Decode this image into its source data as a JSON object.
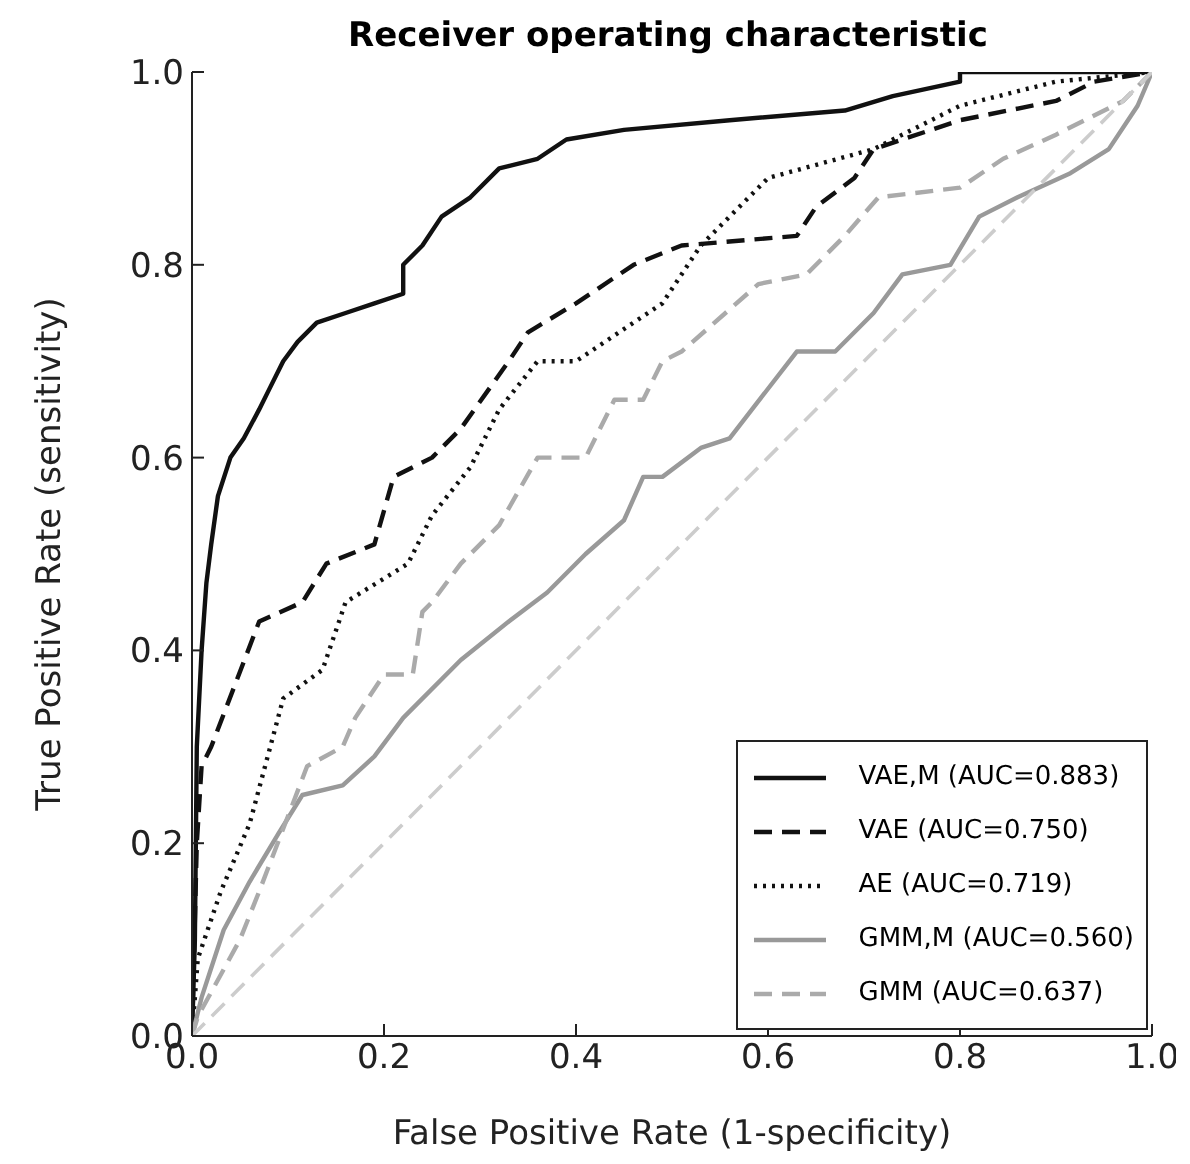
{
  "chart_data": {
    "type": "line",
    "title": "Receiver operating characteristic",
    "xlabel": "False Positive Rate (1-specificity)",
    "ylabel": "True Positive Rate (sensitivity)",
    "xlim": [
      0,
      1
    ],
    "ylim": [
      0,
      1
    ],
    "xticks": [
      {
        "value": 0,
        "label": "0.0"
      },
      {
        "value": 0.2,
        "label": "0.2"
      },
      {
        "value": 0.4,
        "label": "0.4"
      },
      {
        "value": 0.6,
        "label": "0.6"
      },
      {
        "value": 0.8,
        "label": "0.8"
      },
      {
        "value": 1,
        "label": "1.0"
      }
    ],
    "yticks": [
      {
        "value": 0,
        "label": "0.0"
      },
      {
        "value": 0.2,
        "label": "0.2"
      },
      {
        "value": 0.4,
        "label": "0.4"
      },
      {
        "value": 0.6,
        "label": "0.6"
      },
      {
        "value": 0.8,
        "label": "0.8"
      },
      {
        "value": 1,
        "label": "1.0"
      }
    ],
    "legend": "bottom right",
    "series": [
      {
        "name": "VAE,M (AUC=0.883)",
        "color": "#111111",
        "line_style": "solid",
        "x": [
          0,
          0.003,
          0.005,
          0.01,
          0.015,
          0.02,
          0.027,
          0.04,
          0.054,
          0.07,
          0.08,
          0.095,
          0.11,
          0.13,
          0.16,
          0.19,
          0.22,
          0.22,
          0.24,
          0.26,
          0.29,
          0.32,
          0.36,
          0.39,
          0.45,
          0.56,
          0.68,
          0.73,
          0.8,
          0.8,
          1
        ],
        "values": [
          0,
          0.1,
          0.3,
          0.4,
          0.47,
          0.51,
          0.56,
          0.6,
          0.62,
          0.65,
          0.67,
          0.7,
          0.72,
          0.74,
          0.75,
          0.76,
          0.77,
          0.8,
          0.82,
          0.85,
          0.87,
          0.9,
          0.91,
          0.93,
          0.94,
          0.95,
          0.96,
          0.975,
          0.99,
          1,
          1
        ]
      },
      {
        "name": "VAE (AUC=0.750)",
        "color": "#111111",
        "line_style": "dashed",
        "x": [
          0,
          0.005,
          0.01,
          0.02,
          0.07,
          0.115,
          0.14,
          0.19,
          0.21,
          0.25,
          0.28,
          0.33,
          0.35,
          0.4,
          0.46,
          0.51,
          0.63,
          0.65,
          0.69,
          0.71,
          0.8,
          0.9,
          0.94,
          1
        ],
        "values": [
          0,
          0.2,
          0.28,
          0.3,
          0.43,
          0.45,
          0.49,
          0.51,
          0.58,
          0.6,
          0.63,
          0.7,
          0.73,
          0.76,
          0.8,
          0.82,
          0.83,
          0.86,
          0.89,
          0.92,
          0.95,
          0.97,
          0.99,
          1
        ]
      },
      {
        "name": "AE (AUC=0.719)",
        "color": "#111111",
        "line_style": "dotted",
        "x": [
          0,
          0.006,
          0.03,
          0.06,
          0.095,
          0.136,
          0.16,
          0.225,
          0.25,
          0.29,
          0.32,
          0.36,
          0.4,
          0.43,
          0.49,
          0.53,
          0.6,
          0.71,
          0.8,
          0.9,
          1
        ],
        "values": [
          0,
          0.08,
          0.15,
          0.22,
          0.35,
          0.38,
          0.45,
          0.49,
          0.54,
          0.59,
          0.65,
          0.7,
          0.7,
          0.72,
          0.76,
          0.82,
          0.89,
          0.92,
          0.965,
          0.99,
          1
        ]
      },
      {
        "name": "GMM,M (AUC=0.560)",
        "color": "#999999",
        "line_style": "solid",
        "x": [
          0,
          0.01,
          0.033,
          0.06,
          0.09,
          0.115,
          0.157,
          0.19,
          0.22,
          0.28,
          0.33,
          0.37,
          0.41,
          0.45,
          0.47,
          0.49,
          0.53,
          0.56,
          0.63,
          0.67,
          0.71,
          0.74,
          0.79,
          0.82,
          0.86,
          0.915,
          0.955,
          0.985,
          1
        ],
        "values": [
          0,
          0.04,
          0.11,
          0.16,
          0.21,
          0.25,
          0.26,
          0.29,
          0.33,
          0.39,
          0.43,
          0.46,
          0.5,
          0.535,
          0.58,
          0.58,
          0.61,
          0.62,
          0.71,
          0.71,
          0.75,
          0.79,
          0.8,
          0.85,
          0.87,
          0.895,
          0.92,
          0.965,
          1
        ]
      },
      {
        "name": "GMM (AUC=0.637)",
        "color": "#aaaaaa",
        "line_style": "dashed",
        "x": [
          0,
          0.006,
          0.05,
          0.07,
          0.12,
          0.157,
          0.17,
          0.2,
          0.23,
          0.24,
          0.25,
          0.28,
          0.32,
          0.36,
          0.41,
          0.44,
          0.47,
          0.49,
          0.51,
          0.59,
          0.64,
          0.68,
          0.715,
          0.8,
          0.845,
          0.9,
          0.97,
          1
        ],
        "values": [
          0,
          0.02,
          0.1,
          0.15,
          0.28,
          0.3,
          0.33,
          0.375,
          0.375,
          0.44,
          0.45,
          0.49,
          0.53,
          0.6,
          0.6,
          0.66,
          0.66,
          0.7,
          0.71,
          0.78,
          0.79,
          0.83,
          0.87,
          0.88,
          0.91,
          0.935,
          0.97,
          1
        ]
      },
      {
        "color": "#cccccc",
        "line_style": "dashed",
        "x": [
          0,
          1
        ],
        "values": [
          0,
          1
        ]
      }
    ]
  }
}
